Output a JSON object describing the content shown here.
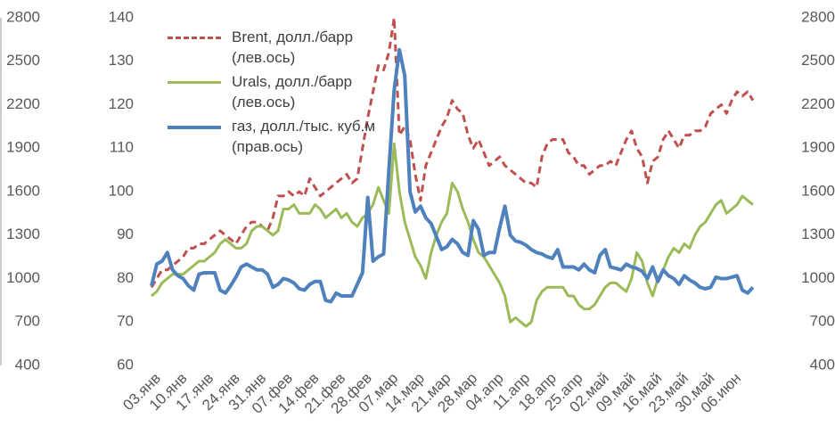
{
  "chart_data": {
    "type": "line",
    "categories": [
      "03.янв",
      null,
      null,
      null,
      null,
      "10.янв",
      null,
      null,
      null,
      null,
      "17.янв",
      null,
      null,
      null,
      null,
      "24.янв",
      null,
      null,
      null,
      null,
      "31.янв",
      null,
      null,
      null,
      null,
      "07.фев",
      null,
      null,
      null,
      null,
      "14.фев",
      null,
      null,
      null,
      null,
      "21.фев",
      null,
      null,
      null,
      null,
      "28.фев",
      null,
      null,
      null,
      null,
      "07.мар",
      null,
      null,
      null,
      null,
      "14.мар",
      null,
      null,
      null,
      null,
      "21.мар",
      null,
      null,
      null,
      null,
      "28.мар",
      null,
      null,
      null,
      null,
      "04.апр",
      null,
      null,
      null,
      null,
      "11.апр",
      null,
      null,
      null,
      null,
      "18.апр",
      null,
      null,
      null,
      null,
      "25.апр",
      null,
      null,
      null,
      null,
      "02.май",
      null,
      null,
      null,
      null,
      "09.май",
      null,
      null,
      null,
      null,
      "16.май",
      null,
      null,
      null,
      null,
      "23.май",
      null,
      null,
      null,
      null,
      "30.май",
      null,
      null,
      null,
      null,
      "06.июн",
      null,
      null,
      null,
      null
    ],
    "series": [
      {
        "name": "Brent, долл./барр\n(лев.ось)",
        "color": "#c0504d",
        "dash": true,
        "axis": "y",
        "values": [
          78,
          80,
          82,
          82,
          83,
          84,
          85,
          87,
          87,
          88,
          88,
          89,
          90,
          91,
          90,
          89,
          88,
          90,
          92,
          93,
          93,
          92,
          91,
          94,
          99,
          99,
          100,
          99,
          100,
          99,
          103,
          101,
          99,
          100,
          101,
          102,
          103,
          104,
          102,
          103,
          110,
          117,
          123,
          129,
          128,
          132,
          140,
          113,
          115,
          112,
          104,
          98,
          106,
          109,
          112,
          115,
          117,
          121,
          119,
          118,
          113,
          110,
          112,
          109,
          106,
          107,
          108,
          106,
          105,
          104,
          103,
          102,
          102,
          101,
          108,
          111,
          112,
          112,
          112,
          109,
          108,
          106,
          106,
          104,
          105,
          106,
          106,
          107,
          106,
          109,
          112,
          114,
          110,
          108,
          102,
          107,
          108,
          112,
          114,
          112,
          110,
          113,
          113,
          114,
          114,
          115,
          118,
          119,
          120,
          118,
          121,
          123,
          122,
          123,
          121
        ]
      },
      {
        "name": "Urals, долл./барр\n(лев.ось)",
        "color": "#9bbb59",
        "dash": false,
        "axis": "y",
        "values": [
          76,
          77,
          79,
          80,
          81,
          81,
          81,
          82,
          83,
          84,
          84,
          85,
          86,
          88,
          89,
          88,
          87,
          87,
          88,
          91,
          92,
          92,
          91,
          90,
          91,
          96,
          96,
          97,
          95,
          95,
          95,
          97,
          96,
          94,
          95,
          96,
          94,
          95,
          93,
          92,
          94,
          95,
          97,
          101,
          98,
          95,
          111,
          100,
          93,
          89,
          85,
          83,
          80,
          86,
          90,
          93,
          95,
          102,
          100,
          96,
          93,
          89,
          86,
          85,
          83,
          81,
          79,
          76,
          70,
          71,
          70,
          69,
          70,
          75,
          77,
          78,
          78,
          78,
          78,
          76,
          76,
          74,
          73,
          73,
          74,
          76,
          78,
          79,
          79,
          78,
          77,
          80,
          86,
          84,
          79,
          76,
          80,
          82,
          85,
          87,
          86,
          88,
          87,
          90,
          92,
          93,
          95,
          97,
          98,
          95,
          96,
          97,
          99,
          98,
          97
        ]
      },
      {
        "name": "газ, долл./тыс. куб.м\n(прав.ось)",
        "color": "#4f81bd",
        "dash": false,
        "axis": "y2",
        "values": [
          950,
          1100,
          1120,
          1180,
          1060,
          1020,
          1000,
          950,
          920,
          1030,
          1040,
          1040,
          1040,
          920,
          900,
          950,
          1010,
          1080,
          1100,
          1080,
          1060,
          1060,
          1030,
          940,
          960,
          1000,
          990,
          970,
          930,
          920,
          960,
          980,
          980,
          850,
          840,
          900,
          880,
          880,
          880,
          960,
          1040,
          1560,
          1120,
          1150,
          1170,
          1750,
          2300,
          2580,
          2400,
          1600,
          1460,
          1500,
          1420,
          1380,
          1290,
          1200,
          1220,
          1270,
          1240,
          1180,
          1160,
          1400,
          1340,
          1160,
          1180,
          1180,
          1350,
          1500,
          1300,
          1260,
          1250,
          1230,
          1200,
          1180,
          1170,
          1150,
          1140,
          1200,
          1080,
          1080,
          1080,
          1060,
          1100,
          1060,
          1040,
          1160,
          1200,
          1080,
          1070,
          1060,
          1100,
          1080,
          1070,
          1050,
          1000,
          1080,
          980,
          1060,
          1020,
          1000,
          960,
          1020,
          990,
          970,
          940,
          930,
          940,
          1010,
          1000,
          1000,
          1010,
          1020,
          920,
          900,
          940
        ]
      }
    ],
    "ylim": [
      60,
      140
    ],
    "yticks": [
      60,
      70,
      80,
      90,
      100,
      110,
      120,
      130,
      140
    ],
    "y2lim": [
      400,
      2800
    ],
    "y2ticks": [
      400,
      700,
      1000,
      1300,
      1600,
      1900,
      2200,
      2500,
      2800
    ]
  }
}
